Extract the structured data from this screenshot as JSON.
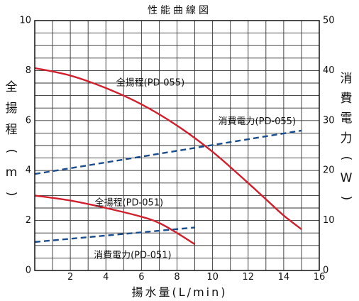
{
  "chart_data": {
    "type": "line",
    "title": "性能曲線図",
    "xlabel": "揚水量(L/min)",
    "ylabel_left": "全揚程(m)",
    "ylabel_right": "消費電力(W)",
    "x_range": [
      0,
      16
    ],
    "x_ticks": [
      "2",
      "4",
      "6",
      "8",
      "10",
      "12",
      "14",
      "16"
    ],
    "ylim_left": [
      0,
      10
    ],
    "y_ticks_left": [
      "0",
      "2",
      "4",
      "6",
      "8",
      "10"
    ],
    "ylim_right": [
      0,
      50
    ],
    "y_ticks_right": [
      "0",
      "10",
      "20",
      "30",
      "40",
      "50"
    ],
    "grid": true,
    "series": [
      {
        "name": "全揚程(PD-055)",
        "axis": "left",
        "color": "#d0202e",
        "style": "solid",
        "points": [
          [
            0,
            8.1
          ],
          [
            2,
            7.8
          ],
          [
            4,
            7.3
          ],
          [
            6,
            6.65
          ],
          [
            8,
            5.8
          ],
          [
            10,
            4.75
          ],
          [
            12,
            3.5
          ],
          [
            13,
            2.85
          ],
          [
            14,
            2.2
          ],
          [
            15,
            1.65
          ]
        ]
      },
      {
        "name": "消費電力(PD-055)",
        "axis": "right",
        "color": "#1b4d8c",
        "style": "dashed",
        "points": [
          [
            0,
            19.3
          ],
          [
            15,
            28.0
          ]
        ]
      },
      {
        "name": "全揚程(PD-051)",
        "axis": "left",
        "color": "#d0202e",
        "style": "solid",
        "points": [
          [
            0,
            3.0
          ],
          [
            2,
            2.8
          ],
          [
            4,
            2.5
          ],
          [
            6,
            2.15
          ],
          [
            7,
            1.9
          ],
          [
            8,
            1.5
          ],
          [
            9,
            1.05
          ]
        ]
      },
      {
        "name": "消費電力(PD-051)",
        "axis": "right",
        "color": "#1b4d8c",
        "style": "dashed",
        "points": [
          [
            0,
            5.7
          ],
          [
            9,
            8.6
          ]
        ]
      }
    ],
    "annotations": [
      {
        "text": "全揚程(PD-055)",
        "x": 6.5,
        "y_left": 7.5
      },
      {
        "text": "消費電力(PD-055)",
        "x": 12.5,
        "y_left": 5.95
      },
      {
        "text": "全揚程(PD-051)",
        "x": 5.3,
        "y_left": 2.7
      },
      {
        "text": "消費電力(PD-051)",
        "x": 5.5,
        "y_left": 0.6
      }
    ]
  }
}
